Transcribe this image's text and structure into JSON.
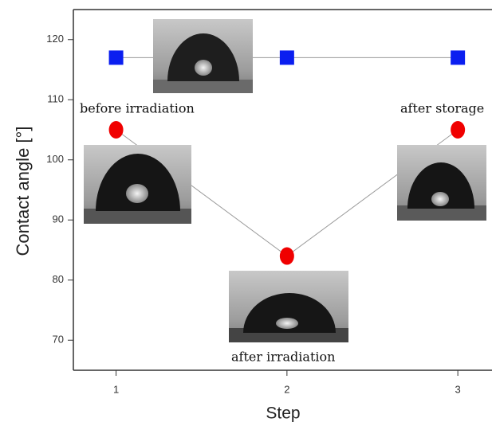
{
  "chart_data": {
    "type": "line",
    "x_label": "Step",
    "y_label": "Contact angle [°]",
    "x": [
      1,
      2,
      3
    ],
    "series": [
      {
        "color": "#0a1ef0",
        "marker": "square",
        "values": [
          117,
          117,
          117
        ]
      },
      {
        "color": "#f00000",
        "marker": "circle",
        "values": [
          105,
          84,
          105
        ]
      }
    ],
    "line_color": "#9a9a9a",
    "xlim": [
      0.75,
      3.2
    ],
    "xticks": [
      1,
      2,
      3
    ],
    "ylim": [
      65,
      125
    ],
    "yticks": [
      70,
      80,
      90,
      100,
      110,
      120
    ],
    "annotations": [
      "before irradiation",
      "after irradiation",
      "after storage"
    ]
  }
}
